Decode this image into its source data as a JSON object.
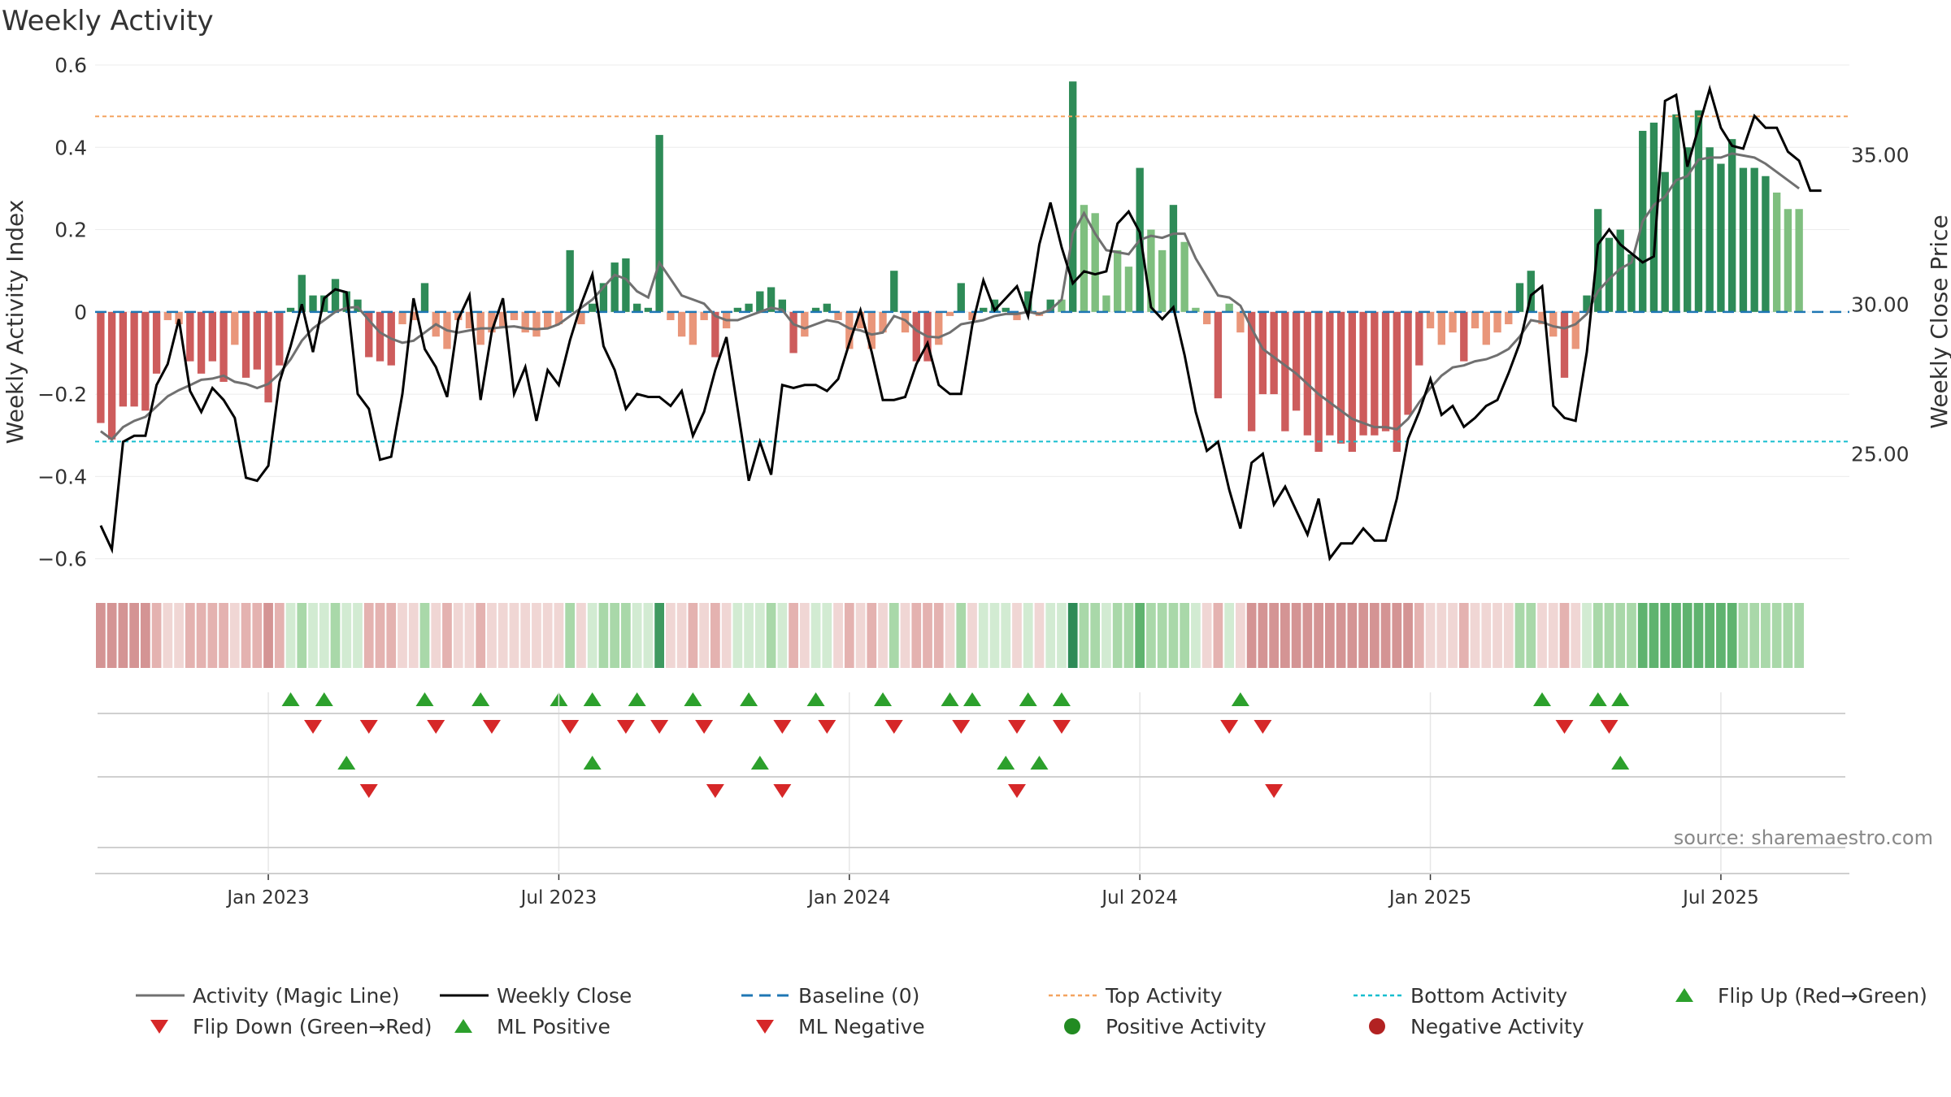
{
  "chart_data": {
    "type": "bar",
    "title": "Weekly Activity",
    "ylabel_left": "Weekly Activity Index",
    "ylabel_right": "Weekly Close Price",
    "source": "source: sharemaestro.com",
    "ylim_left": [
      -0.65,
      0.6
    ],
    "yticks_left": [
      {
        "v": 0.6,
        "label": "0.6"
      },
      {
        "v": 0.4,
        "label": "0.4"
      },
      {
        "v": 0.2,
        "label": "0.2"
      },
      {
        "v": 0,
        "label": "0"
      },
      {
        "v": -0.2,
        "label": "−0.2"
      },
      {
        "v": -0.4,
        "label": "−0.4"
      },
      {
        "v": -0.6,
        "label": "−0.6"
      }
    ],
    "ylim_right": [
      20.8,
      38.0
    ],
    "yticks_right": [
      {
        "v": 35,
        "label": "35.00"
      },
      {
        "v": 30,
        "label": "30.00"
      },
      {
        "v": 25,
        "label": "25.00"
      }
    ],
    "top_activity": 0.475,
    "bottom_activity": -0.315,
    "baseline": 0,
    "x_start": "2022-10-02",
    "x_end": "2025-09-21",
    "week_count": 157,
    "x_ticks": [
      {
        "week": 15,
        "label": "Jan 2023"
      },
      {
        "week": 41,
        "label": "Jul 2023"
      },
      {
        "week": 67,
        "label": "Jan 2024"
      },
      {
        "week": 93,
        "label": "Jul 2024"
      },
      {
        "week": 119,
        "label": "Jan 2025"
      },
      {
        "week": 145,
        "label": "Jul 2025"
      }
    ],
    "activity": [
      -0.27,
      -0.31,
      -0.23,
      -0.23,
      -0.24,
      -0.15,
      -0.02,
      -0.03,
      -0.12,
      -0.15,
      -0.12,
      -0.17,
      -0.08,
      -0.16,
      -0.14,
      -0.22,
      -0.13,
      0.01,
      0.09,
      0.04,
      0.04,
      0.08,
      0.05,
      0.03,
      -0.11,
      -0.12,
      -0.13,
      -0.03,
      -0.02,
      0.07,
      -0.06,
      -0.09,
      -0.02,
      -0.04,
      -0.08,
      -0.05,
      -0.04,
      -0.02,
      -0.05,
      -0.06,
      -0.04,
      -0.03,
      0.15,
      -0.03,
      0.02,
      0.07,
      0.12,
      0.13,
      0.02,
      0.01,
      0.43,
      -0.02,
      -0.06,
      -0.08,
      -0.02,
      -0.11,
      -0.04,
      0.01,
      0.02,
      0.05,
      0.06,
      0.03,
      -0.1,
      -0.06,
      0.01,
      0.02,
      -0.02,
      -0.09,
      -0.04,
      -0.09,
      -0.05,
      0.1,
      -0.05,
      -0.12,
      -0.12,
      -0.08,
      -0.01,
      0.07,
      -0.02,
      0.01,
      0.03,
      0.01,
      -0.02,
      0.05,
      -0.01,
      0.03,
      0.03,
      0.56,
      0.26,
      0.24,
      0.04,
      0.15,
      0.11,
      0.35,
      0.2,
      0.15,
      0.26,
      0.17,
      0.01,
      -0.03,
      -0.21,
      0.02,
      -0.05,
      -0.29,
      -0.2,
      -0.2,
      -0.29,
      -0.24,
      -0.3,
      -0.34,
      -0.3,
      -0.32,
      -0.34,
      -0.3,
      -0.3,
      -0.29,
      -0.34,
      -0.25,
      -0.13,
      -0.04,
      -0.08,
      -0.05,
      -0.12,
      -0.04,
      -0.08,
      -0.05,
      -0.03,
      0.07,
      0.1,
      -0.03,
      -0.06,
      -0.16,
      -0.09,
      0.04,
      0.25,
      0.18,
      0.2,
      0.14,
      0.44,
      0.46,
      0.34,
      0.48,
      0.4,
      0.49,
      0.4,
      0.36,
      0.42,
      0.35,
      0.35,
      0.33,
      0.29,
      0.25,
      0.25
    ],
    "magic_line": [
      -0.29,
      -0.31,
      -0.28,
      -0.265,
      -0.255,
      -0.23,
      -0.205,
      -0.19,
      -0.178,
      -0.165,
      -0.162,
      -0.155,
      -0.17,
      -0.175,
      -0.185,
      -0.175,
      -0.15,
      -0.115,
      -0.07,
      -0.04,
      -0.02,
      0.0,
      0.01,
      0.012,
      -0.02,
      -0.05,
      -0.065,
      -0.075,
      -0.07,
      -0.05,
      -0.03,
      -0.045,
      -0.05,
      -0.045,
      -0.04,
      -0.04,
      -0.037,
      -0.035,
      -0.04,
      -0.042,
      -0.04,
      -0.03,
      -0.01,
      0.01,
      0.03,
      0.06,
      0.09,
      0.08,
      0.05,
      0.035,
      0.12,
      0.08,
      0.04,
      0.03,
      0.02,
      -0.01,
      -0.02,
      -0.02,
      -0.01,
      0.0,
      0.01,
      0.005,
      -0.03,
      -0.04,
      -0.03,
      -0.02,
      -0.025,
      -0.04,
      -0.045,
      -0.055,
      -0.05,
      -0.01,
      -0.02,
      -0.045,
      -0.06,
      -0.062,
      -0.05,
      -0.03,
      -0.025,
      -0.02,
      -0.01,
      -0.005,
      -0.005,
      0.0,
      -0.005,
      0.005,
      0.03,
      0.19,
      0.24,
      0.19,
      0.15,
      0.145,
      0.14,
      0.175,
      0.185,
      0.18,
      0.19,
      0.19,
      0.13,
      0.085,
      0.04,
      0.035,
      0.015,
      -0.04,
      -0.09,
      -0.11,
      -0.13,
      -0.15,
      -0.175,
      -0.2,
      -0.22,
      -0.24,
      -0.26,
      -0.27,
      -0.28,
      -0.28,
      -0.285,
      -0.26,
      -0.22,
      -0.185,
      -0.155,
      -0.135,
      -0.13,
      -0.12,
      -0.115,
      -0.105,
      -0.09,
      -0.06,
      -0.02,
      -0.025,
      -0.035,
      -0.04,
      -0.03,
      -0.005,
      0.05,
      0.08,
      0.105,
      0.12,
      0.22,
      0.26,
      0.28,
      0.32,
      0.33,
      0.37,
      0.375,
      0.375,
      0.385,
      0.38,
      0.375,
      0.36,
      0.34,
      0.32,
      0.3
    ],
    "weekly_close": [
      22.6,
      21.8,
      25.4,
      25.6,
      25.6,
      27.3,
      28.0,
      29.5,
      27.1,
      26.4,
      27.2,
      26.8,
      26.2,
      24.2,
      24.1,
      24.6,
      27.4,
      28.6,
      30.0,
      28.4,
      30.2,
      30.5,
      30.4,
      27.0,
      26.5,
      24.8,
      24.9,
      27.0,
      30.2,
      28.5,
      27.9,
      26.9,
      29.5,
      30.3,
      26.8,
      29.1,
      30.2,
      27.0,
      27.9,
      26.1,
      27.8,
      27.3,
      28.8,
      30.0,
      31.0,
      28.6,
      27.8,
      26.5,
      27.0,
      26.9,
      26.9,
      26.6,
      27.1,
      25.6,
      26.4,
      27.8,
      28.9,
      26.5,
      24.1,
      25.4,
      24.3,
      27.3,
      27.2,
      27.3,
      27.3,
      27.1,
      27.5,
      28.7,
      29.8,
      28.4,
      26.8,
      26.8,
      26.9,
      28.0,
      28.7,
      27.3,
      27.0,
      27.0,
      29.3,
      30.8,
      29.8,
      30.2,
      30.6,
      29.6,
      32.0,
      33.4,
      31.9,
      30.7,
      31.1,
      31.0,
      31.1,
      32.7,
      33.1,
      32.4,
      29.9,
      29.5,
      29.9,
      28.3,
      26.4,
      25.1,
      25.4,
      23.8,
      22.5,
      24.7,
      25.0,
      23.3,
      23.9,
      23.1,
      22.3,
      23.5,
      21.5,
      22.0,
      22.0,
      22.5,
      22.1,
      22.1,
      23.5,
      25.5,
      26.4,
      27.5,
      26.3,
      26.6,
      25.9,
      26.2,
      26.6,
      26.8,
      27.7,
      28.7,
      30.3,
      30.6,
      26.6,
      26.2,
      26.1,
      28.4,
      32.0,
      32.5,
      32.0,
      31.7,
      31.4,
      31.6,
      36.8,
      37.0,
      34.6,
      35.9,
      37.2,
      35.9,
      35.3,
      35.2,
      36.3,
      35.9,
      35.9,
      35.1,
      34.8,
      33.8,
      33.8
    ],
    "heat_levels": [
      3,
      3,
      3,
      3,
      3,
      2,
      1,
      1,
      2,
      2,
      2,
      2,
      1,
      2,
      2,
      3,
      2,
      1,
      2,
      1,
      1,
      2,
      1,
      1,
      2,
      2,
      2,
      1,
      1,
      2,
      1,
      2,
      1,
      1,
      2,
      1,
      1,
      1,
      1,
      1,
      1,
      1,
      2,
      1,
      1,
      2,
      2,
      2,
      1,
      1,
      3,
      1,
      1,
      2,
      1,
      2,
      1,
      1,
      1,
      1,
      2,
      1,
      2,
      1,
      1,
      1,
      1,
      2,
      1,
      2,
      1,
      2,
      1,
      2,
      2,
      2,
      1,
      2,
      1,
      1,
      1,
      1,
      1,
      1,
      1,
      1,
      1,
      3,
      2,
      2,
      1,
      2,
      2,
      3,
      2,
      2,
      2,
      2,
      1,
      1,
      2,
      1,
      1,
      3,
      3,
      3,
      3,
      3,
      3,
      3,
      3,
      3,
      3,
      3,
      3,
      3,
      3,
      3,
      2,
      1,
      1,
      1,
      2,
      1,
      1,
      1,
      1,
      2,
      2,
      1,
      1,
      2,
      1,
      1,
      2,
      2,
      2,
      2,
      3,
      3,
      3,
      3,
      3,
      3,
      3,
      3,
      3,
      2,
      2,
      2,
      2,
      2,
      2
    ],
    "flip_up_weeks": [
      17,
      20,
      29,
      34,
      41,
      44,
      48,
      53,
      58,
      64,
      70,
      76,
      78,
      83,
      86,
      102,
      129,
      134,
      136
    ],
    "flip_down_weeks": [
      19,
      24,
      30,
      35,
      42,
      47,
      50,
      54,
      61,
      65,
      71,
      77,
      82,
      86,
      101,
      104,
      131,
      135
    ],
    "ml_positive_weeks": [
      22,
      44,
      59,
      81,
      84,
      136
    ],
    "ml_negative_weeks": [
      24,
      55,
      61,
      82,
      105
    ],
    "series_colors": {
      "positive_strong": "#2e8b57",
      "positive_light": "#7fbf7f",
      "negative_strong": "#cd5c5c",
      "negative_light": "#e9967a",
      "magic_line": "#707070",
      "weekly_close": "#000000",
      "baseline": "#1f77b4",
      "top_activity": "#f4a460",
      "bottom_activity": "#17becf",
      "marker_up": "#2ca02c",
      "marker_down": "#d62728",
      "neg_dot": "#b22222"
    }
  },
  "legend": [
    {
      "key": "magic",
      "label": "Activity (Magic Line)"
    },
    {
      "key": "close",
      "label": "Weekly Close"
    },
    {
      "key": "baseline",
      "label": "Baseline (0)"
    },
    {
      "key": "top",
      "label": "Top Activity"
    },
    {
      "key": "bottom",
      "label": "Bottom Activity"
    },
    {
      "key": "flip_up",
      "label": "Flip Up (Red→Green)"
    },
    {
      "key": "flip_down",
      "label": "Flip Down (Green→Red)"
    },
    {
      "key": "ml_pos",
      "label": "ML Positive"
    },
    {
      "key": "ml_neg",
      "label": "ML Negative"
    },
    {
      "key": "pos_act",
      "label": "Positive Activity"
    },
    {
      "key": "neg_act",
      "label": "Negative Activity"
    }
  ]
}
